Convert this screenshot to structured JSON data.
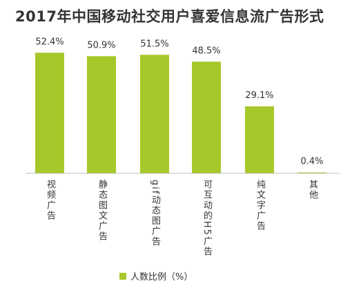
{
  "colors": {
    "bar": "#a6c82a",
    "axis": "#bfbfbf",
    "text": "#333333"
  },
  "chart_data": {
    "type": "bar",
    "title": "2017年中国移动社交用户喜爱信息流广告形式",
    "categories": [
      "视频广告",
      "静态图文广告",
      "gif动态图广告",
      "可互动的H5广告",
      "纯文字广告",
      "其他"
    ],
    "series": [
      {
        "name": "人数比例（%）",
        "values": [
          52.4,
          50.9,
          51.5,
          48.5,
          29.1,
          0.4
        ]
      }
    ],
    "value_labels": [
      "52.4%",
      "50.9%",
      "51.5%",
      "48.5%",
      "29.1%",
      "0.4%"
    ],
    "ylim": [
      0,
      60
    ],
    "xlabel": "",
    "ylabel": "",
    "grid": false,
    "legend": "bottom-center"
  }
}
